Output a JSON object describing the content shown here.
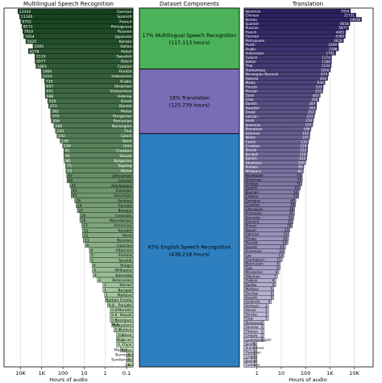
{
  "panels": {
    "left_title": "Multilingual Speech Recognition",
    "middle_title": "Dataset Components",
    "right_title": "Translation",
    "left_xlabel": "Hours of audio",
    "right_xlabel": "Hours of audio"
  },
  "left_ticks": [
    "10K",
    "1K",
    "100",
    "10",
    "1",
    "0.1"
  ],
  "right_ticks": [
    "1",
    "10",
    "100",
    "1K",
    "10K"
  ],
  "chart_data": [
    {
      "type": "bar",
      "title": "Multilingual Speech Recognition",
      "xlabel": "Hours of audio",
      "scale": "log",
      "xlim": [
        0.05,
        60000
      ],
      "orientation": "horizontal, bars extend leftward",
      "categories": [
        "German",
        "Spanish",
        "French",
        "Portuguese",
        "Russian",
        "Japanese",
        "Korean",
        "Italian",
        "Polish",
        "Swedish",
        "Dutch",
        "Catalan",
        "Finnish",
        "Indonesian",
        "Arabic",
        "Ukrainian",
        "Vietnamese",
        "Hebrew",
        "Greek",
        "Danish",
        "Malay",
        "Hungarian",
        "Romanian",
        "Norwegian",
        "Thai",
        "Czech",
        "Tamil",
        "Urdu",
        "Croatian",
        "Slovak",
        "Bulgarian",
        "Tagalog",
        "Welsh",
        "Lithuanian",
        "Latvian",
        "Azerbaijani",
        "Estonian",
        "Slovenian",
        "Serbian",
        "Persian",
        "Basque",
        "Icelandic",
        "Macedonian",
        "Armenian",
        "Kazakh",
        "Hindi",
        "Bosnian",
        "Galician",
        "Albanian",
        "Sinhala",
        "Swahili",
        "Telugu",
        "Afrikaans",
        "Kannada",
        "Belarusian",
        "Khmer",
        "Bengali",
        "Maltese",
        "Haitian Creole",
        "Punjabi",
        "Marathi",
        "Nepali",
        "Georgian",
        "Malayalam",
        "Yiddish",
        "Uzbek",
        "Gujarati",
        "Tajik",
        "Malagasy",
        "Burmese",
        "Sundanese",
        "Lao"
      ],
      "values": [
        13344,
        11100,
        9752,
        8573,
        7910,
        7054,
        5625,
        2585,
        4278,
        2119,
        2077,
        1883,
        1066,
        1014,
        739,
        697,
        691,
        688,
        529,
        473,
        382,
        379,
        356,
        266,
        226,
        192,
        136,
        104,
        91,
        90,
        86,
        75,
        73,
        67,
        65,
        47,
        41,
        41,
        28,
        24,
        21,
        16,
        16,
        13,
        12,
        12,
        11,
        8.9,
        5.7,
        5.4,
        5.4,
        4.3,
        4.1,
        3.8,
        2.4,
        1.3,
        1.3,
        1.1,
        1.0,
        0.8,
        0.6,
        0.6,
        0.6,
        0.5,
        0.4,
        0.3,
        0.3,
        0.3,
        0.2,
        0.1,
        0.1,
        0.1
      ],
      "colors": [
        "#14401c",
        "#c6e8bd"
      ]
    },
    {
      "type": "stacked_bar",
      "title": "Dataset Components",
      "segments": [
        {
          "label": "17% Multilingual Speech Recognition",
          "hours": "(117,113 hours)",
          "percent": 17,
          "color": "#4cb35a"
        },
        {
          "label": "18% Translation",
          "hours": "(125,739 hours)",
          "percent": 18,
          "color": "#7a6cb5"
        },
        {
          "label": "65% English Speech Recognition",
          "hours": "(438,218 hours)",
          "percent": 65,
          "color": "#2e7fc0"
        }
      ]
    },
    {
      "type": "bar",
      "title": "Translation",
      "xlabel": "Hours of audio",
      "scale": "log",
      "xlim": [
        0.3,
        60000
      ],
      "orientation": "horizontal, bars extend rightward",
      "categories": [
        "Japanese",
        "Chinese",
        "Korean",
        "Spanish",
        "Russian",
        "French",
        "German",
        "Portuguese",
        "Polish",
        "Arabic",
        "Indonesian",
        "Turkish",
        "Italian",
        "Thai",
        "Vietnamese",
        "Norwegian Nynorsk",
        "Hebrew",
        "Malay",
        "Finnish",
        "Persian",
        "Tamil",
        "Urdu",
        "Danish",
        "Swedish",
        "Greek",
        "Latvian",
        "Hindi",
        "Javanese",
        "Romanian",
        "Estonian",
        "Welsh",
        "Czech",
        "Croatian",
        "Slovak",
        "Bengali",
        "Danish",
        "Ukrainian",
        "Sinhala",
        "Afrikaans",
        "Norwegian",
        "Slovenian",
        "Serbian",
        "Swahili",
        "Bosnian",
        "Catalan",
        "Georgian",
        "Croatian",
        "Lithuanian",
        "Armenian",
        "Kannada",
        "Sanskrit",
        "Khmer",
        "Nepali",
        "Galician",
        "Telugu",
        "Marathi",
        "Kazakh",
        "Armenian",
        "Lao",
        "Azerbaijani",
        "Belarusian",
        "Tajik",
        "Mongolian",
        "Albanian",
        "Yiddish",
        "Pashto",
        "Maltese",
        "Occitan",
        "Kazakh",
        "Icelandic",
        "Amharic",
        "Hausa",
        "Yoruba",
        "Tatar",
        "Malagasy",
        "Faroese",
        "Tibetan",
        "Lingala",
        "Luxembourgish",
        "Sindhi",
        "Sundanese",
        "Hawaiian",
        "Lingala",
        "Bashkir",
        "Turkmen"
      ],
      "values": [
        7054,
        11731,
        19938,
        6658,
        5877,
        4481,
        4309,
        3620,
        2200,
        2286,
        1741,
        1174,
        1166,
        1133,
        1050,
        874,
        810,
        630,
        533,
        510,
        402,
        356,
        287,
        283,
        252,
        231,
        210,
        197,
        168,
        152,
        147,
        133,
        124,
        122,
        116,
        112,
        100,
        85,
        81,
        73,
        74,
        71,
        61,
        54,
        53,
        40,
        39,
        36,
        35,
        33,
        31,
        29,
        23,
        21,
        20,
        19,
        15,
        14,
        13,
        11,
        9,
        9,
        8,
        7,
        6,
        6,
        5,
        5,
        5,
        4,
        3,
        3,
        3,
        3,
        2,
        2,
        2,
        2,
        2,
        1,
        1,
        1,
        1,
        1,
        1
      ],
      "colors": [
        "#2a1f5e",
        "#d8d4ef"
      ]
    }
  ]
}
